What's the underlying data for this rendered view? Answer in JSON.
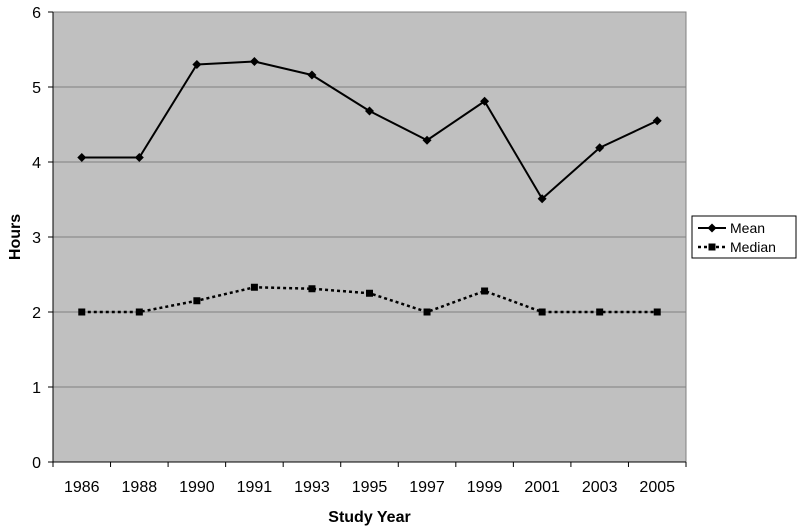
{
  "chart_data": {
    "type": "line",
    "title": "",
    "xlabel": "Study Year",
    "ylabel": "Hours",
    "ylim": [
      0,
      6
    ],
    "yticks": [
      0,
      1,
      2,
      3,
      4,
      5,
      6
    ],
    "categories": [
      "1986",
      "1988",
      "1990",
      "1991",
      "1993",
      "1995",
      "1997",
      "1999",
      "2001",
      "2003",
      "2005"
    ],
    "grid": "horizontal",
    "plot_background": "#c0c0c0",
    "legend_position": "right",
    "series": [
      {
        "name": "Mean",
        "marker": "diamond",
        "line_style": "solid",
        "color": "#000000",
        "values": [
          4.06,
          4.06,
          5.3,
          5.34,
          5.16,
          4.68,
          4.29,
          4.81,
          3.51,
          4.19,
          4.55
        ]
      },
      {
        "name": "Median",
        "marker": "square",
        "line_style": "dotted",
        "color": "#000000",
        "values": [
          2.0,
          2.0,
          2.15,
          2.33,
          2.31,
          2.25,
          2.0,
          2.28,
          2.0,
          2.0,
          2.0
        ]
      }
    ]
  }
}
